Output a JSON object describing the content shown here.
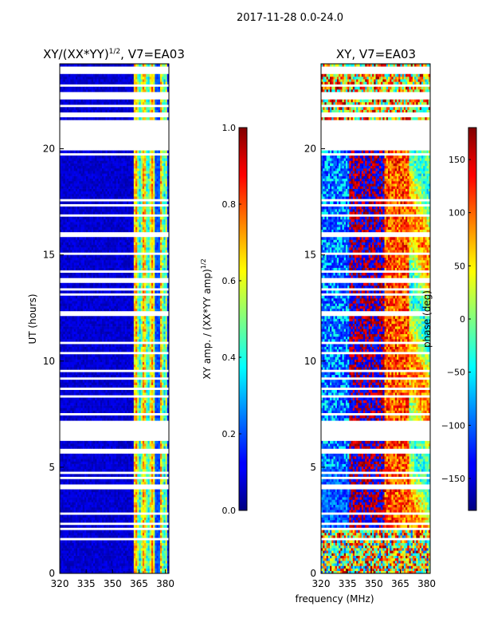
{
  "chart_data": [
    {
      "type": "heatmap",
      "suptitle": "2017-11-28 0.0-24.0",
      "title": "XY/(XX*YY)",
      "title_sup": "1/2",
      "title_suffix": ", V7=EA03",
      "xlabel": "",
      "ylabel": "UT (hours)",
      "xlim": [
        320,
        382
      ],
      "ylim": [
        0,
        24
      ],
      "xticks": [
        320,
        335,
        350,
        365,
        380
      ],
      "yticks": [
        0,
        5,
        10,
        15,
        20
      ],
      "colormap": "jet",
      "colorbar": {
        "label": "XY amp. / (XX*YY amp)",
        "label_sup": "1/2",
        "range": [
          0.0,
          1.0
        ],
        "ticks": [
          "0.0",
          "0.2",
          "0.4",
          "0.6",
          "0.8",
          "1.0"
        ],
        "tick_values": [
          0.0,
          0.2,
          0.4,
          0.6,
          0.8,
          1.0
        ]
      }
    },
    {
      "type": "heatmap",
      "title": "XY, V7=EA03",
      "xlabel": "frequency (MHz)",
      "ylabel": "",
      "xlim": [
        320,
        382
      ],
      "ylim": [
        0,
        24
      ],
      "xticks": [
        320,
        335,
        350,
        365,
        380
      ],
      "yticks": [
        0,
        5,
        10,
        15,
        20
      ],
      "colormap": "jet",
      "colorbar": {
        "label": "phase (deg)",
        "range": [
          -180,
          180
        ],
        "ticks": [
          "150",
          "100",
          "50",
          "0",
          "−50",
          "−100",
          "−150"
        ],
        "tick_values": [
          150,
          100,
          50,
          0,
          -50,
          -100,
          -150
        ]
      }
    }
  ]
}
